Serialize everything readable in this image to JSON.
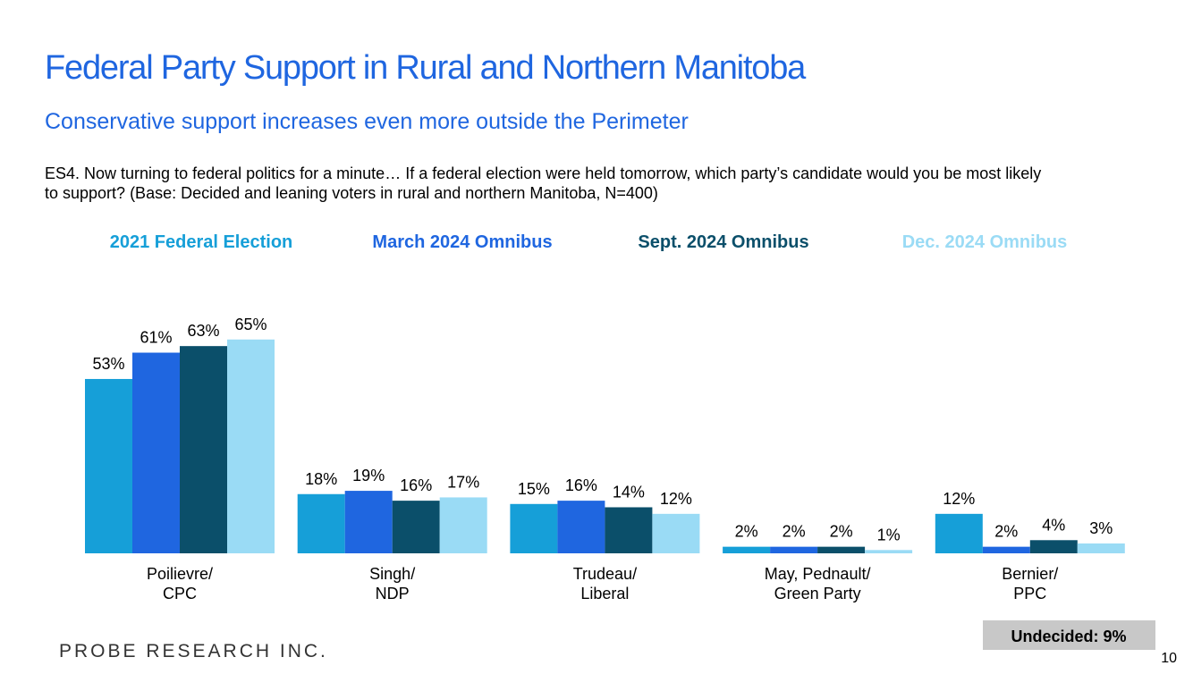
{
  "chart_data": {
    "type": "bar",
    "title": "Federal Party Support in Rural and Northern Manitoba",
    "subtitle": "Conservative support increases even more outside the Perimeter",
    "question": "ES4. Now turning to federal politics for a minute… If a federal election were held tomorrow, which party’s candidate would you be most likely\nto support? (Base: Decided and leaning voters in rural and northern Manitoba, N=400)",
    "categories": [
      "Poilievre/\nCPC",
      "Singh/\nNDP",
      "Trudeau/\nLiberal",
      "May, Pednault/\nGreen Party",
      "Bernier/\nPPC"
    ],
    "series": [
      {
        "name": "2021 Federal Election",
        "color": "#169fd8",
        "values": [
          53,
          18,
          15,
          2,
          12
        ],
        "value_labels": [
          "53%",
          "18%",
          "15%",
          "2%",
          "12%"
        ]
      },
      {
        "name": "March 2024 Omnibus",
        "color": "#1f66e0",
        "values": [
          61,
          19,
          16,
          2,
          2
        ],
        "value_labels": [
          "61%",
          "19%",
          "16%",
          "2%",
          "2%"
        ]
      },
      {
        "name": "Sept. 2024 Omnibus",
        "color": "#0b4f6a",
        "values": [
          63,
          16,
          14,
          2,
          4
        ],
        "value_labels": [
          "63%",
          "16%",
          "14%",
          "2%",
          "4%"
        ]
      },
      {
        "name": "Dec. 2024 Omnibus",
        "color": "#9adbf5",
        "values": [
          65,
          17,
          12,
          1,
          3
        ],
        "value_labels": [
          "65%",
          "17%",
          "12%",
          "1%",
          "3%"
        ]
      }
    ],
    "annotation": "Undecided: 9%",
    "footer": "PROBE RESEARCH INC.",
    "page_number": "10"
  }
}
